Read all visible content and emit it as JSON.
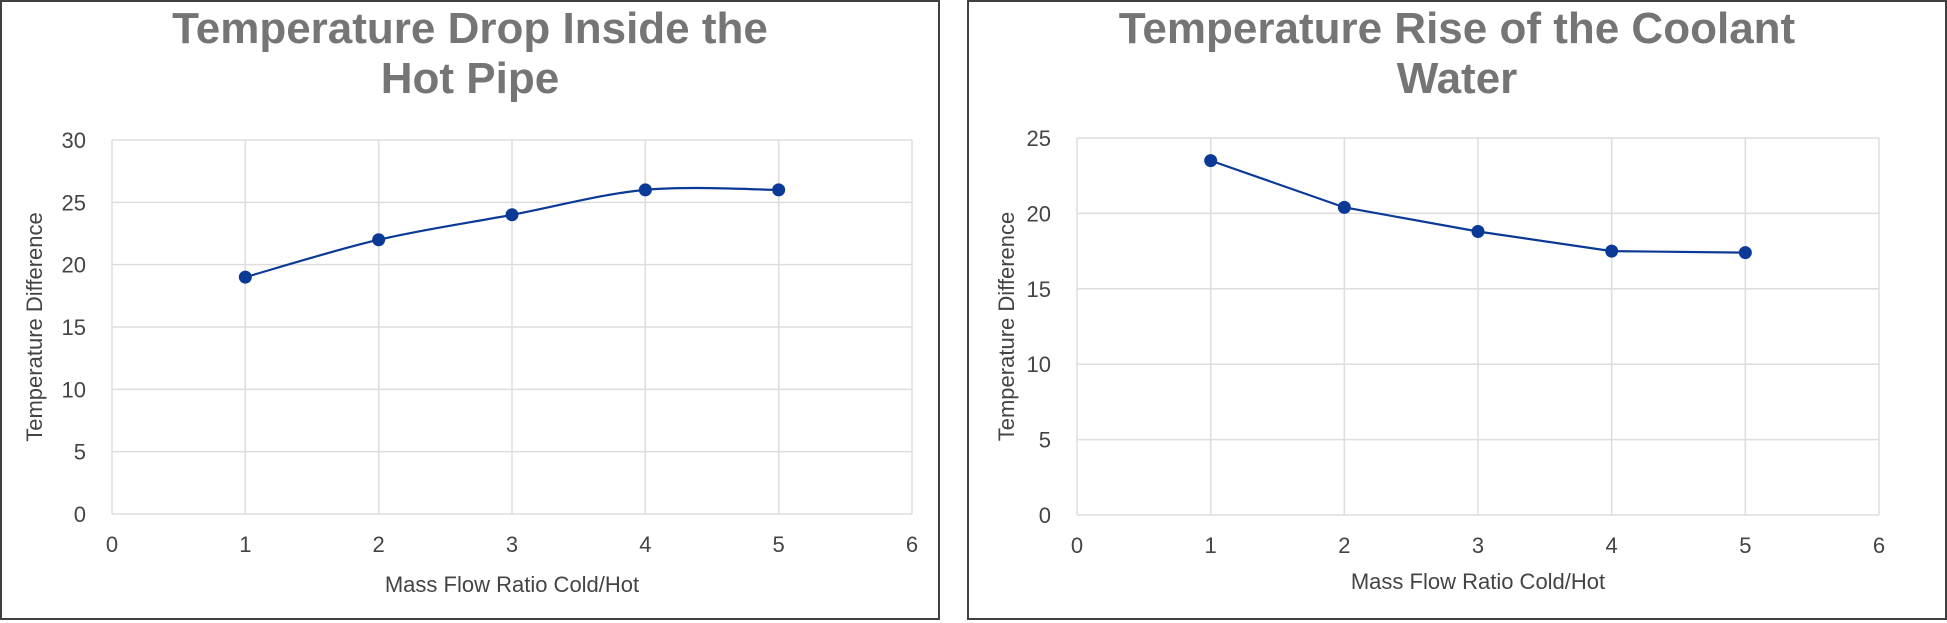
{
  "chart_data": [
    {
      "type": "line",
      "title_lines": [
        "Temperature Drop Inside the",
        "Hot Pipe"
      ],
      "xlabel": "Mass Flow Ratio Cold/Hot",
      "ylabel": "Temperature Difference",
      "xlim": [
        0,
        6
      ],
      "ylim": [
        0,
        30
      ],
      "x_ticks": [
        0,
        1,
        2,
        3,
        4,
        5,
        6
      ],
      "y_ticks": [
        0,
        5,
        10,
        15,
        20,
        25,
        30
      ],
      "grid": true,
      "smooth": true,
      "series": [
        {
          "x": [
            1,
            2,
            3,
            4,
            5
          ],
          "y": [
            19,
            22,
            24,
            26,
            26
          ]
        }
      ],
      "colors": {
        "line": "#0b3a96",
        "marker": "#0b3a96",
        "grid": "#dddddd",
        "title": "#757575"
      }
    },
    {
      "type": "line",
      "title_lines": [
        "Temperature Rise of the Coolant",
        "Water"
      ],
      "xlabel": "Mass Flow Ratio Cold/Hot",
      "ylabel": "Temperature Difference",
      "xlim": [
        0,
        6
      ],
      "ylim": [
        0,
        25
      ],
      "x_ticks": [
        0,
        1,
        2,
        3,
        4,
        5,
        6
      ],
      "y_ticks": [
        0,
        5,
        10,
        15,
        20,
        25
      ],
      "grid": true,
      "smooth": false,
      "series": [
        {
          "x": [
            1,
            2,
            3,
            4,
            5
          ],
          "y": [
            23.5,
            20.4,
            18.8,
            17.5,
            17.4
          ]
        }
      ],
      "colors": {
        "line": "#0b3a96",
        "marker": "#0b3a96",
        "grid": "#dddddd",
        "title": "#757575"
      }
    }
  ]
}
